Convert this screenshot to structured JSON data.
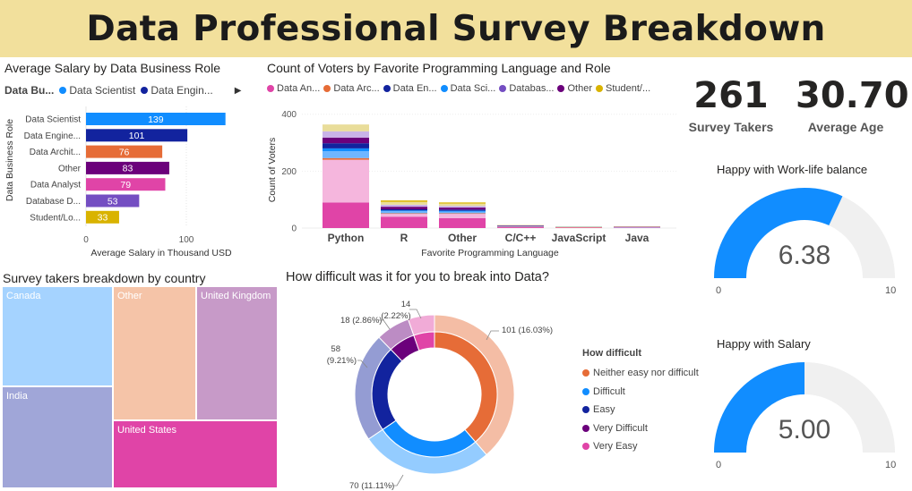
{
  "header": {
    "title": "Data Professional Survey Breakdown"
  },
  "colors": {
    "banner": "#f2e09c",
    "data_scientist": "#118dff",
    "data_engineer": "#12239e",
    "data_architect": "#e66c37",
    "other": "#6b007b",
    "data_analyst": "#e044a7",
    "database_dev": "#744ec2",
    "student": "#d9b300"
  },
  "salary_chart": {
    "title": "Average Salary by Data Business Role",
    "legend_title": "Data Bu...",
    "legend_items": [
      "Data Scientist",
      "Data Engin..."
    ],
    "legend_more_icon": "triangle-right-icon"
  },
  "voters_chart": {
    "title": "Count of Voters by Favorite Programming Language and Role",
    "legend_items": [
      "Data An...",
      "Data Arc...",
      "Data En...",
      "Data Sci...",
      "Databas...",
      "Other",
      "Student/..."
    ]
  },
  "kpis": {
    "survey_takers": {
      "value": "261",
      "label": "Survey Takers"
    },
    "average_age": {
      "value": "30.70",
      "label": "Average Age"
    }
  },
  "treemap": {
    "title": "Survey takers breakdown by country",
    "cells": [
      "Canada",
      "India",
      "Other",
      "United Kingdom",
      "United States"
    ]
  },
  "donut": {
    "title": "How difficult was it for you to break into Data?",
    "legend_title": "How difficult",
    "legend_items": [
      "Neither easy nor difficult",
      "Difficult",
      "Easy",
      "Very Difficult",
      "Very Easy"
    ],
    "labels": {
      "neither": "101 (16.03%)",
      "difficult": "70 (11.11%)",
      "easy_a": "58",
      "easy_b": "(9.21%)",
      "very_difficult": "18 (2.86%)",
      "very_easy_a": "14",
      "very_easy_b": "(2.22%)"
    }
  },
  "gauges": {
    "worklife": {
      "title": "Happy with Work-life balance",
      "value_label": "6.38",
      "min_label": "0",
      "max_label": "10"
    },
    "salary": {
      "title": "Happy with Salary",
      "value_label": "5.00",
      "min_label": "0",
      "max_label": "10"
    }
  },
  "chart_data": [
    {
      "type": "bar",
      "orientation": "horizontal",
      "title": "Average Salary by Data Business Role",
      "xlabel": "Average Salary in Thousand USD",
      "ylabel": "Data Business Role",
      "categories": [
        "Data Scientist",
        "Data Engine...",
        "Data Archit...",
        "Other",
        "Data Analyst",
        "Database D...",
        "Student/Lo..."
      ],
      "values": [
        139,
        101,
        76,
        83,
        79,
        53,
        33
      ],
      "colors": [
        "#118dff",
        "#12239e",
        "#e66c37",
        "#6b007b",
        "#e044a7",
        "#744ec2",
        "#d9b300"
      ],
      "xticks": [
        "0",
        "100"
      ],
      "xlim": [
        0,
        150
      ]
    },
    {
      "type": "bar",
      "stacked": true,
      "title": "Count of Voters by Favorite Programming Language and Role",
      "xlabel": "Favorite Programming Language",
      "ylabel": "Count of Voters",
      "categories": [
        "Python",
        "R",
        "Other",
        "C/C++",
        "JavaScript",
        "Java"
      ],
      "yticks": [
        "0",
        "200",
        "400"
      ],
      "ylim": [
        0,
        440
      ],
      "series": [
        {
          "name": "Data An...",
          "color": "#e044a7",
          "values": [
            90,
            40,
            35,
            3,
            2,
            2
          ]
        },
        {
          "name": "Data An...",
          "color": "#f5b6dd",
          "values": [
            150,
            10,
            15,
            2,
            1,
            1
          ]
        },
        {
          "name": "Data Arc...",
          "color": "#e66c37",
          "values": [
            6,
            2,
            2,
            1,
            1,
            0
          ]
        },
        {
          "name": "Data Sci...",
          "color": "#6fb6ff",
          "values": [
            24,
            7,
            6,
            1,
            1,
            1
          ]
        },
        {
          "name": "Data Sci...",
          "color": "#118dff",
          "values": [
            10,
            3,
            3,
            0,
            0,
            0
          ]
        },
        {
          "name": "Data En...",
          "color": "#12239e",
          "values": [
            18,
            4,
            4,
            1,
            0,
            0
          ]
        },
        {
          "name": "Other",
          "color": "#6b007b",
          "values": [
            20,
            9,
            7,
            1,
            0,
            1
          ]
        },
        {
          "name": "Databas...",
          "color": "#c9b3e8",
          "values": [
            22,
            7,
            6,
            1,
            0,
            0
          ]
        },
        {
          "name": "Student/...",
          "color": "#e9dd9a",
          "values": [
            24,
            10,
            8,
            1,
            1,
            1
          ]
        },
        {
          "name": "Student/...",
          "color": "#d9b300",
          "values": [
            0,
            5,
            4,
            0,
            0,
            0
          ]
        }
      ]
    },
    {
      "type": "treemap",
      "title": "Survey takers breakdown by country",
      "categories": [
        "Canada",
        "India",
        "Other",
        "United Kingdom",
        "United States"
      ],
      "colors": [
        "#a5d3ff",
        "#a0a6d8",
        "#f5c4a8",
        "#c79ac8",
        "#e044a7"
      ]
    },
    {
      "type": "pie",
      "subtype": "donut",
      "title": "How difficult was it for you to break into Data?",
      "categories": [
        "Neither easy nor difficult",
        "Difficult",
        "Easy",
        "Very Difficult",
        "Very Easy"
      ],
      "values": [
        101,
        70,
        58,
        18,
        14
      ],
      "percent_labels": [
        "16.03%",
        "11.11%",
        "9.21%",
        "2.86%",
        "2.22%"
      ],
      "colors": [
        "#e66c37",
        "#118dff",
        "#12239e",
        "#6b007b",
        "#e044a7"
      ]
    },
    {
      "type": "gauge",
      "title": "Happy with Work-life balance",
      "value": 6.38,
      "min": 0,
      "max": 10,
      "color": "#118dff"
    },
    {
      "type": "gauge",
      "title": "Happy with Salary",
      "value": 5.0,
      "min": 0,
      "max": 10,
      "color": "#118dff"
    }
  ]
}
